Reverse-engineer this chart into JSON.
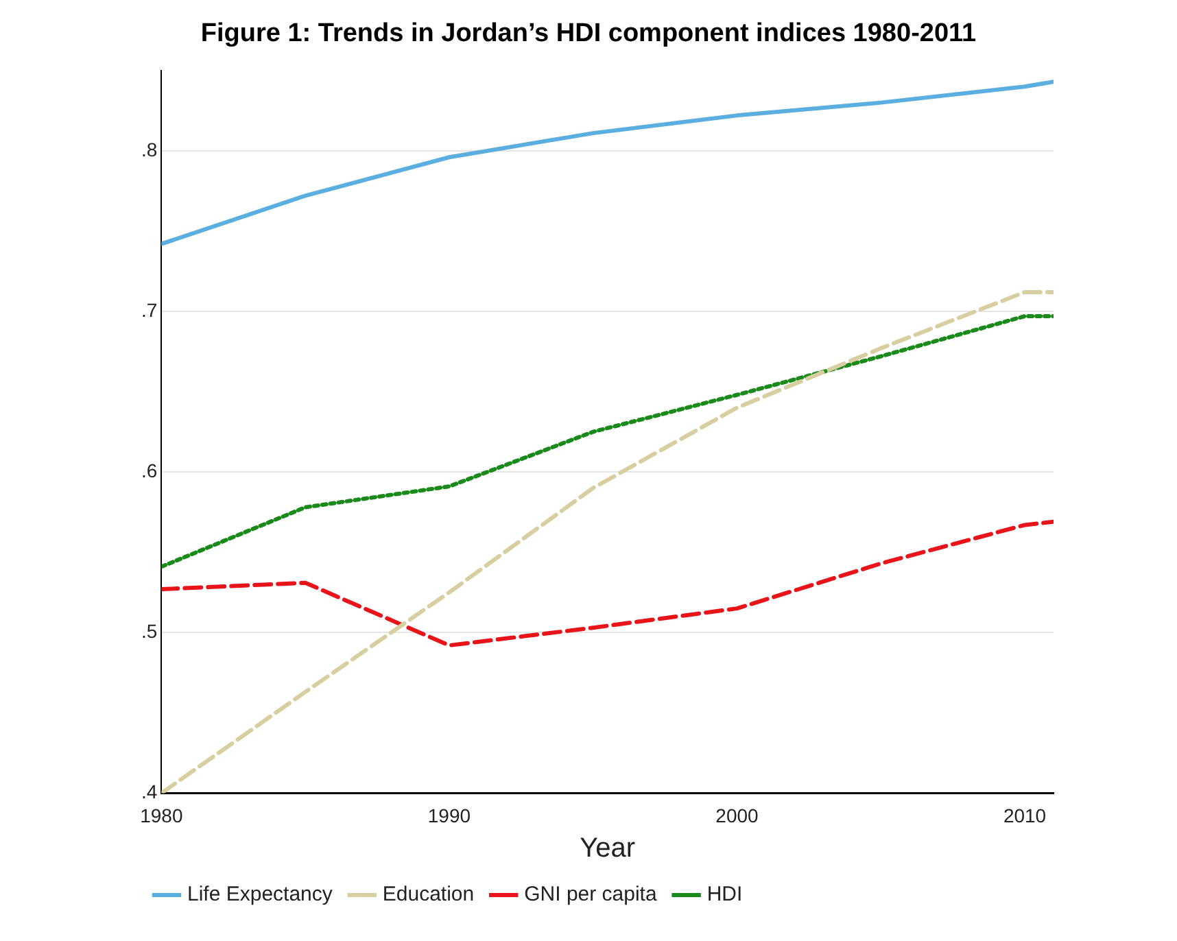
{
  "chart_data": {
    "type": "line",
    "title": "Figure 1: Trends in Jordan’s HDI component indices 1980-2011",
    "xlabel": "Year",
    "x": [
      1980,
      1985,
      1990,
      1995,
      2000,
      2005,
      2010,
      2011
    ],
    "xlim": [
      1980,
      2011
    ],
    "xticks": [
      1980,
      1990,
      2000,
      2010
    ],
    "ylim": [
      0.4,
      0.85
    ],
    "yticks": [
      {
        "value": 0.4,
        "label": ".4"
      },
      {
        "value": 0.5,
        "label": ".5"
      },
      {
        "value": 0.6,
        "label": ".6"
      },
      {
        "value": 0.7,
        "label": ".7"
      },
      {
        "value": 0.8,
        "label": ".8"
      }
    ],
    "grid": "y",
    "legend": "bottom",
    "marker": "none",
    "series": [
      {
        "name": "Life Expectancy",
        "color": "#5aaee0",
        "line_style": "solid",
        "values": [
          0.742,
          0.772,
          0.796,
          0.811,
          0.822,
          0.83,
          0.84,
          0.843
        ]
      },
      {
        "name": "Education",
        "color": "#d8cfa0",
        "line_style": "dashed",
        "values": [
          0.4,
          0.463,
          0.525,
          0.59,
          0.64,
          0.677,
          0.712,
          0.712
        ]
      },
      {
        "name": "GNI per capita",
        "color": "#e8141a",
        "line_style": "dashed",
        "values": [
          0.527,
          0.531,
          0.492,
          0.503,
          0.515,
          0.543,
          0.567,
          0.569
        ]
      },
      {
        "name": "HDI",
        "color": "#1a8a1a",
        "line_style": "dotted",
        "values": [
          0.541,
          0.578,
          0.591,
          0.625,
          0.648,
          0.672,
          0.697,
          0.697
        ]
      }
    ]
  }
}
